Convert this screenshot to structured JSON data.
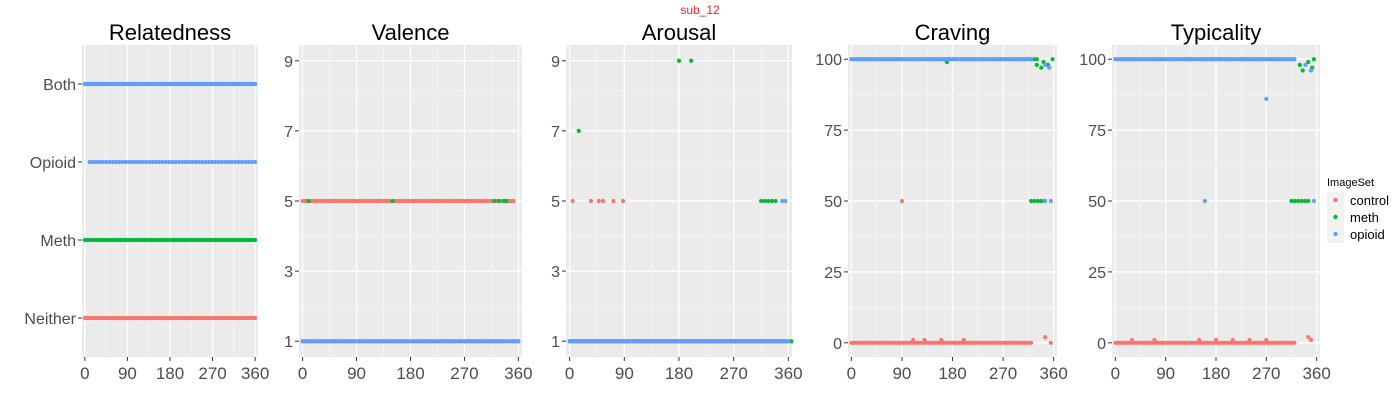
{
  "figure": {
    "suptitle": "sub_12"
  },
  "legend": {
    "title": "ImageSet",
    "items": [
      {
        "label": "control",
        "color": "#F8766D"
      },
      {
        "label": "meth",
        "color": "#00BA38"
      },
      {
        "label": "opioid",
        "color": "#619CFF"
      }
    ]
  },
  "chart_data": [
    {
      "type": "scatter",
      "title": "Relatedness",
      "y_categorical": true,
      "y_categories": [
        "Neither",
        "Meth",
        "Opioid",
        "Both"
      ],
      "xlim": [
        -6,
        366
      ],
      "x_ticks": [
        0,
        90,
        180,
        270,
        360
      ],
      "ylim": [
        0.5,
        4.5
      ],
      "series": [
        {
          "name": "control",
          "color": "#F8766D",
          "segments": [
            [
              0,
              360,
              1,
              4
            ]
          ]
        },
        {
          "name": "meth",
          "color": "#00BA38",
          "segments": [
            [
              0,
              360,
              2,
              5
            ],
            [
              0,
              360,
              4,
              6
            ]
          ]
        },
        {
          "name": "opioid",
          "color": "#619CFF",
          "segments": [
            [
              10,
              360,
              3,
              7
            ],
            [
              0,
              360,
              4,
              5
            ]
          ]
        }
      ]
    },
    {
      "type": "scatter",
      "title": "Valence",
      "xlim": [
        -6,
        366
      ],
      "x_ticks": [
        0,
        90,
        180,
        270,
        360
      ],
      "ylim": [
        0.55,
        9.45
      ],
      "y_ticks": [
        1,
        3,
        5,
        7,
        9
      ],
      "series": [
        {
          "name": "control",
          "color": "#F8766D",
          "segments": [
            [
              0,
              355,
              5,
              4
            ]
          ]
        },
        {
          "name": "meth",
          "color": "#00BA38",
          "segments": [
            [
              0,
              360,
              1,
              5
            ],
            [
              320,
              340,
              5,
              8
            ]
          ],
          "points": [
            [
              10,
              5
            ],
            [
              150,
              5
            ],
            [
              340,
              5
            ]
          ]
        },
        {
          "name": "opioid",
          "color": "#619CFF",
          "segments": [
            [
              0,
              360,
              1,
              5
            ]
          ]
        }
      ]
    },
    {
      "type": "scatter",
      "title": "Arousal",
      "xlim": [
        -6,
        366
      ],
      "x_ticks": [
        0,
        90,
        180,
        270,
        360
      ],
      "ylim": [
        0.55,
        9.45
      ],
      "y_ticks": [
        1,
        3,
        5,
        7,
        9
      ],
      "series": [
        {
          "name": "control",
          "color": "#F8766D",
          "segments": [
            [
              0,
              355,
              1,
              4
            ]
          ],
          "points": [
            [
              5,
              5
            ],
            [
              35,
              5
            ],
            [
              48,
              5
            ],
            [
              55,
              5
            ],
            [
              72,
              5
            ],
            [
              88,
              5
            ]
          ]
        },
        {
          "name": "meth",
          "color": "#00BA38",
          "segments": [
            [
              0,
              360,
              1,
              4
            ],
            [
              315,
              340,
              5,
              6
            ]
          ],
          "points": [
            [
              15,
              7
            ],
            [
              180,
              9
            ],
            [
              200,
              9
            ],
            [
              20,
              1
            ],
            [
              365,
              1
            ]
          ]
        },
        {
          "name": "opioid",
          "color": "#619CFF",
          "segments": [
            [
              0,
              360,
              1,
              5
            ]
          ],
          "points": [
            [
              350,
              5
            ],
            [
              355,
              5
            ]
          ]
        }
      ]
    },
    {
      "type": "scatter",
      "title": "Craving",
      "xlim": [
        -6,
        366
      ],
      "x_ticks": [
        0,
        90,
        180,
        270,
        360
      ],
      "ylim": [
        -5,
        105
      ],
      "y_ticks": [
        0,
        25,
        50,
        75,
        100
      ],
      "series": [
        {
          "name": "control",
          "color": "#F8766D",
          "segments": [
            [
              0,
              320,
              0,
              4
            ]
          ],
          "points": [
            [
              90,
              50
            ],
            [
              110,
              1
            ],
            [
              130,
              1
            ],
            [
              160,
              1
            ],
            [
              200,
              1
            ],
            [
              345,
              2
            ],
            [
              355,
              0
            ]
          ]
        },
        {
          "name": "meth",
          "color": "#00BA38",
          "segments": [
            [
              0,
              330,
              100,
              5
            ],
            [
              320,
              345,
              50,
              6
            ]
          ],
          "points": [
            [
              170,
              99
            ],
            [
              330,
              98
            ],
            [
              338,
              97
            ],
            [
              342,
              99
            ],
            [
              350,
              98
            ],
            [
              358,
              100
            ]
          ]
        },
        {
          "name": "opioid",
          "color": "#619CFF",
          "segments": [
            [
              0,
              320,
              100,
              5
            ]
          ],
          "points": [
            [
              345,
              98
            ],
            [
              352,
              97
            ],
            [
              345,
              50
            ],
            [
              355,
              50
            ]
          ]
        }
      ]
    },
    {
      "type": "scatter",
      "title": "Typicality",
      "xlim": [
        -6,
        366
      ],
      "x_ticks": [
        0,
        90,
        180,
        270,
        360
      ],
      "ylim": [
        -5,
        105
      ],
      "y_ticks": [
        0,
        25,
        50,
        75,
        100
      ],
      "series": [
        {
          "name": "control",
          "color": "#F8766D",
          "segments": [
            [
              0,
              320,
              0,
              4
            ]
          ],
          "points": [
            [
              30,
              1
            ],
            [
              70,
              1
            ],
            [
              150,
              1
            ],
            [
              180,
              1
            ],
            [
              210,
              1
            ],
            [
              240,
              1
            ],
            [
              270,
              1
            ],
            [
              345,
              2
            ],
            [
              350,
              1
            ]
          ]
        },
        {
          "name": "meth",
          "color": "#00BA38",
          "segments": [
            [
              0,
              320,
              100,
              5
            ],
            [
              315,
              345,
              50,
              6
            ]
          ],
          "points": [
            [
              330,
              98
            ],
            [
              335,
              96
            ],
            [
              345,
              99
            ],
            [
              352,
              97
            ],
            [
              355,
              100
            ]
          ]
        },
        {
          "name": "opioid",
          "color": "#619CFF",
          "segments": [
            [
              0,
              320,
              100,
              5
            ]
          ],
          "points": [
            [
              270,
              86
            ],
            [
              160,
              50
            ],
            [
              340,
              98
            ],
            [
              350,
              96
            ],
            [
              355,
              50
            ]
          ]
        }
      ]
    }
  ]
}
